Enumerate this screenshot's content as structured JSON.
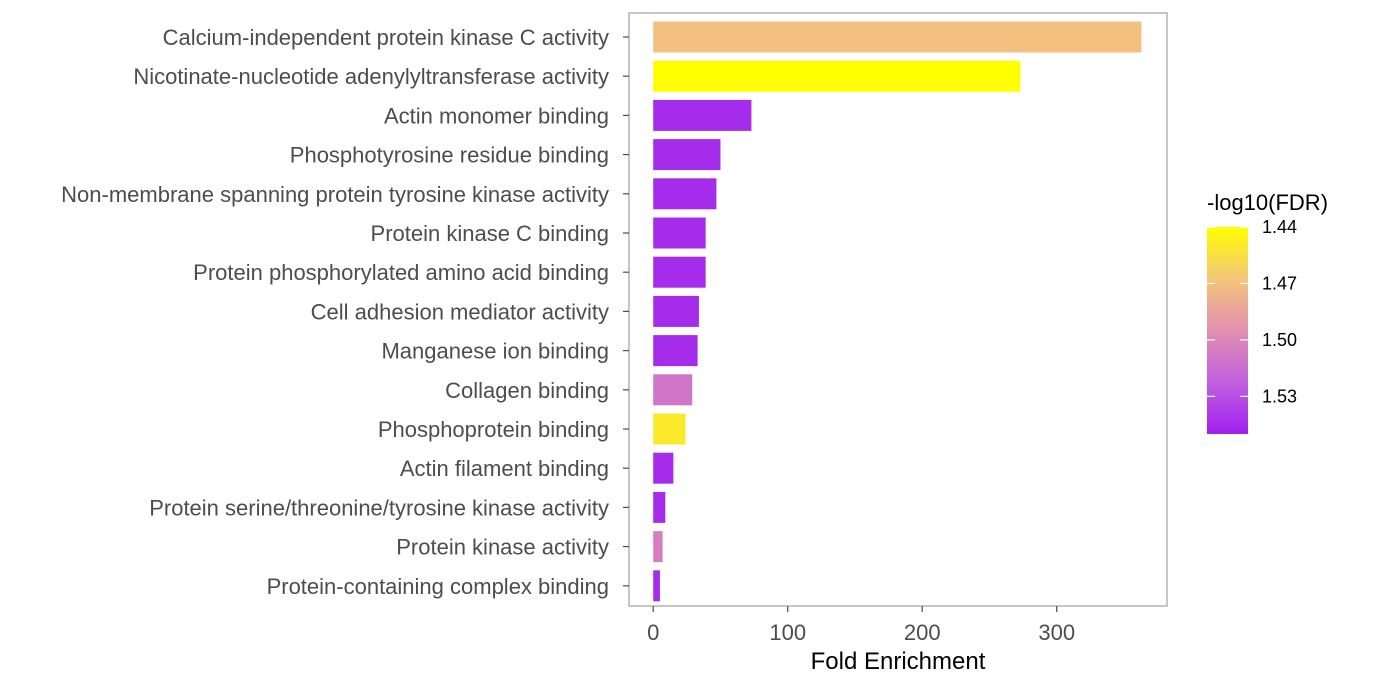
{
  "chart_data": {
    "type": "bar",
    "orientation": "horizontal",
    "categories": [
      "Calcium-independent protein kinase C activity",
      "Nicotinate-nucleotide adenylyltransferase activity",
      "Actin monomer binding",
      "Phosphotyrosine residue binding",
      "Non-membrane spanning protein tyrosine kinase activity",
      "Protein kinase C binding",
      "Protein phosphorylated amino acid binding",
      "Cell adhesion mediator activity",
      "Manganese ion binding",
      "Collagen binding",
      "Phosphoprotein binding",
      "Actin filament binding",
      "Protein serine/threonine/tyrosine kinase activity",
      "Protein kinase activity",
      "Protein-containing complex binding"
    ],
    "values": [
      363,
      273,
      73,
      50,
      47,
      39,
      39,
      34,
      33,
      29,
      24,
      15,
      9,
      7,
      5
    ],
    "color_values": [
      1.47,
      1.44,
      1.545,
      1.545,
      1.545,
      1.545,
      1.545,
      1.545,
      1.545,
      1.51,
      1.45,
      1.545,
      1.545,
      1.505,
      1.545
    ],
    "xlabel": "Fold Enrichment",
    "ylabel": "",
    "xlim": [
      -18,
      382
    ],
    "xticks": [
      0,
      100,
      200,
      300
    ],
    "grid": false,
    "legend": {
      "title": "-log10(FDR)",
      "position": "right",
      "range": [
        1.44,
        1.55
      ],
      "ticks": [
        1.44,
        1.47,
        1.5,
        1.53
      ],
      "tick_labels": [
        "1.44",
        "1.47",
        "1.50",
        "1.53"
      ],
      "colors_low_to_high": [
        "#ffff00",
        "#f5c57a",
        "#e290b0",
        "#c060dc",
        "#a020f0"
      ]
    }
  }
}
